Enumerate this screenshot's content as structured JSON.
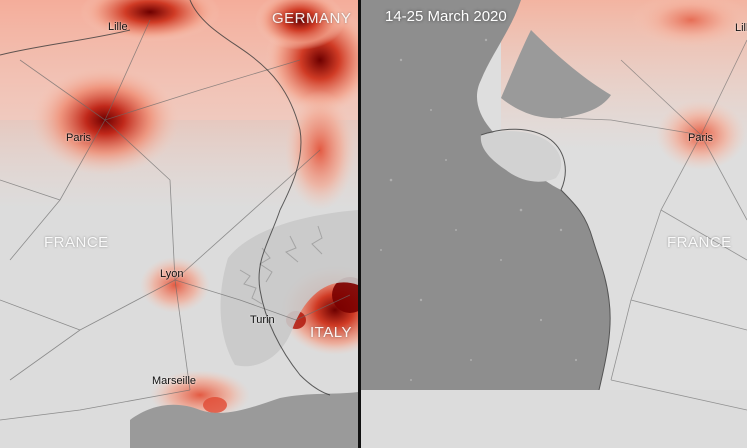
{
  "left_panel": {
    "cities": {
      "lille": "Lille",
      "paris": "Paris",
      "lyon": "Lyon",
      "turin": "Turin",
      "marseille": "Marseille"
    },
    "countries": {
      "germany": "GERMANY",
      "france": "FRANCE",
      "italy": "ITALY"
    }
  },
  "right_panel": {
    "date_range": "14-25 March 2020",
    "cities": {
      "lille": "Lill",
      "paris": "Paris"
    },
    "countries": {
      "france": "FRANCE"
    }
  },
  "colors": {
    "land_base": "#dcdcdc",
    "sea_gray": "#8a8a8a",
    "no2_low": "#f6c9b8",
    "no2_mid": "#e8604a",
    "no2_high": "#8b0b00",
    "divider": "#111111",
    "label_text": "#111111",
    "country_text": "#ffffff"
  },
  "legend": {
    "scale_semantic": "nitrogen-dioxide-concentration",
    "icons": [
      "city-marker-icon"
    ]
  }
}
